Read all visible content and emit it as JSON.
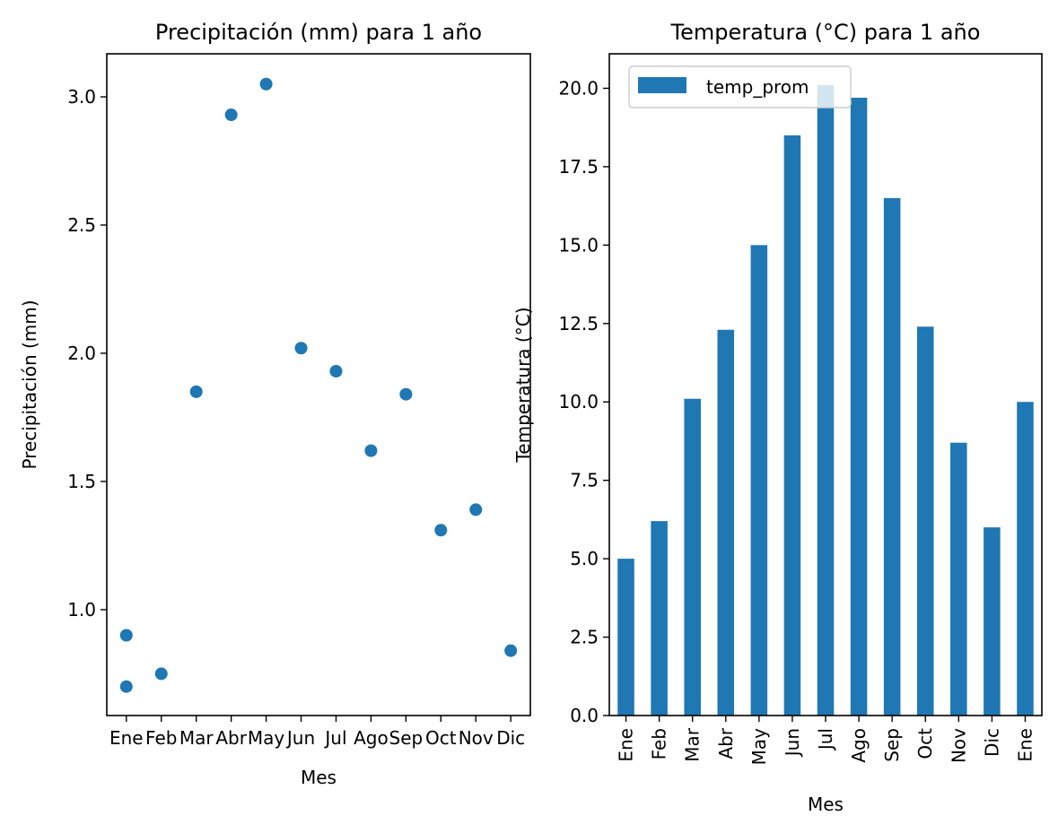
{
  "colors": {
    "series": "#1f77b4",
    "axis": "#000000"
  },
  "chart_data": [
    {
      "type": "scatter",
      "title": "Precipitación (mm) para 1 año",
      "xlabel": "Mes",
      "ylabel": "Precipitación (mm)",
      "categories": [
        "Ene",
        "Feb",
        "Mar",
        "Abr",
        "May",
        "Jun",
        "Jul",
        "Ago",
        "Sep",
        "Oct",
        "Nov",
        "Dic"
      ],
      "points": [
        {
          "x": "Ene",
          "y": 0.9
        },
        {
          "x": "Ene",
          "y": 0.7
        },
        {
          "x": "Feb",
          "y": 0.75
        },
        {
          "x": "Mar",
          "y": 1.85
        },
        {
          "x": "Abr",
          "y": 2.93
        },
        {
          "x": "May",
          "y": 3.05
        },
        {
          "x": "Jun",
          "y": 2.02
        },
        {
          "x": "Jul",
          "y": 1.93
        },
        {
          "x": "Ago",
          "y": 1.62
        },
        {
          "x": "Sep",
          "y": 1.84
        },
        {
          "x": "Oct",
          "y": 1.31
        },
        {
          "x": "Nov",
          "y": 1.39
        },
        {
          "x": "Dic",
          "y": 0.84
        }
      ],
      "yticks": [
        "1.0",
        "1.5",
        "2.0",
        "2.5",
        "3.0"
      ],
      "ylim": [
        0.587,
        3.168
      ],
      "xlim": [
        -0.56,
        11.56
      ]
    },
    {
      "type": "bar",
      "title": "Temperatura (°C) para 1 año",
      "xlabel": "Mes",
      "ylabel": "Temperatura (°C)",
      "categories": [
        "Ene",
        "Feb",
        "Mar",
        "Abr",
        "May",
        "Jun",
        "Jul",
        "Ago",
        "Sep",
        "Oct",
        "Nov",
        "Dic",
        "Ene"
      ],
      "series": [
        {
          "name": "temp_prom",
          "values": [
            5.0,
            6.2,
            10.1,
            12.3,
            15.0,
            18.5,
            20.1,
            19.7,
            16.5,
            12.4,
            8.7,
            6.0,
            10.0
          ]
        }
      ],
      "yticks": [
        "0.0",
        "2.5",
        "5.0",
        "7.5",
        "10.0",
        "12.5",
        "15.0",
        "17.5",
        "20.0"
      ],
      "ylim": [
        0,
        21.1
      ],
      "legend": "top-left"
    }
  ]
}
